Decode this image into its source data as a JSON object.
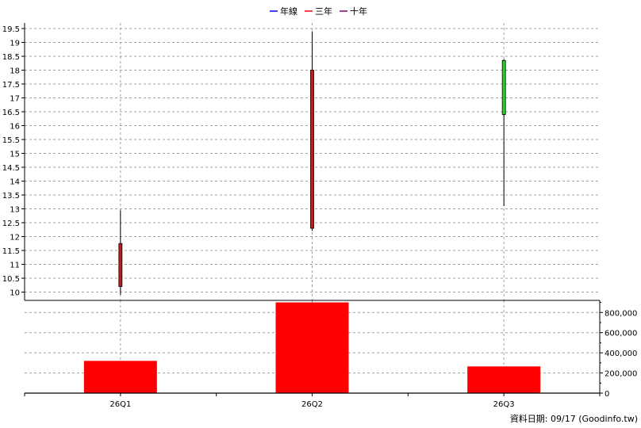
{
  "legend": [
    {
      "label": "年線",
      "color": "#0000ff"
    },
    {
      "label": "三年",
      "color": "#ff0000"
    },
    {
      "label": "十年",
      "color": "#800080"
    }
  ],
  "footer": "資料日期: 09/17  (Goodinfo.tw)",
  "colors": {
    "up": "#b22222",
    "down": "#32cd32",
    "volume": "#ff0000",
    "grid": "#a0a0a0"
  },
  "chart_data": [
    {
      "type": "candlestick",
      "categories": [
        "26Q1",
        "26Q2",
        "26Q3"
      ],
      "series": [
        {
          "open": 10.2,
          "high": 12.95,
          "low": 9.9,
          "close": 11.75,
          "direction": "up"
        },
        {
          "open": 12.3,
          "high": 19.4,
          "low": 12.2,
          "close": 18.0,
          "direction": "up"
        },
        {
          "open": 18.35,
          "high": 18.4,
          "low": 13.1,
          "close": 16.4,
          "direction": "down"
        }
      ],
      "ylim": [
        9.7,
        19.7
      ],
      "yticks": [
        "10",
        "10.5",
        "11",
        "11.5",
        "12",
        "12.5",
        "13",
        "13.5",
        "14",
        "14.5",
        "15",
        "15.5",
        "16",
        "16.5",
        "17",
        "17.5",
        "18",
        "18.5",
        "19",
        "19.5"
      ],
      "grid": true,
      "legend_position": "top-center"
    },
    {
      "type": "bar",
      "categories": [
        "26Q1",
        "26Q2",
        "26Q3"
      ],
      "values": [
        320000,
        900000,
        265000
      ],
      "ylim": [
        0,
        900000
      ],
      "yticks": [
        "0",
        "200,000",
        "400,000",
        "600,000",
        "800,000"
      ],
      "grid": true
    }
  ]
}
